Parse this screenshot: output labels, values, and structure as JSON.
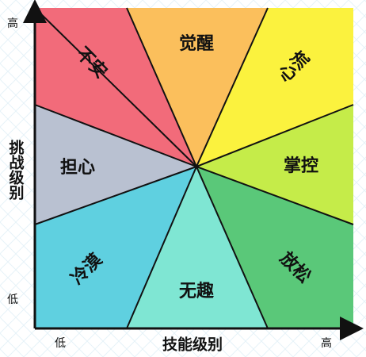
{
  "diagram": {
    "y_axis": {
      "label": "挑战级别",
      "high": "高",
      "low": "低"
    },
    "x_axis": {
      "label": "技能级别",
      "low": "低",
      "high": "高"
    },
    "zones": [
      {
        "key": "anxiety",
        "label": "不安",
        "color": "#F26B7A"
      },
      {
        "key": "arousal",
        "label": "觉醒",
        "color": "#FBBF5C"
      },
      {
        "key": "flow",
        "label": "心流",
        "color": "#FBF23E"
      },
      {
        "key": "control",
        "label": "掌控",
        "color": "#C5EC49"
      },
      {
        "key": "worry",
        "label": "担心",
        "color": "#B9C1D1"
      },
      {
        "key": "apathy",
        "label": "冷漠",
        "color": "#5FD0E0"
      },
      {
        "key": "boredom",
        "label": "无趣",
        "color": "#7FE6D3"
      },
      {
        "key": "relaxation",
        "label": "放松",
        "color": "#5AC879"
      }
    ],
    "background_grid_color": "#E6F2F8",
    "line_color": "#111111"
  }
}
